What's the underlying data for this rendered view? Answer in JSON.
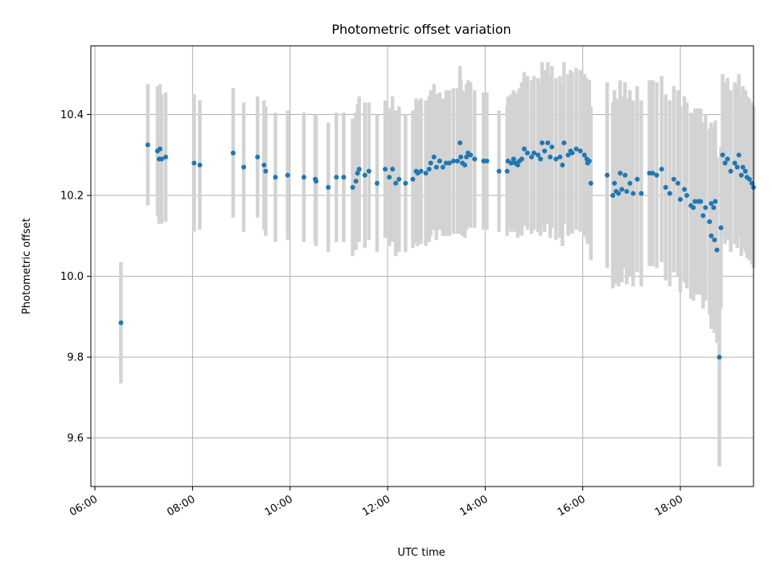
{
  "chart_data": {
    "type": "scatter",
    "title": "Photometric offset variation",
    "xlabel": "UTC time",
    "ylabel": "Photometric offset",
    "x_ticks": [
      "06:00",
      "08:00",
      "10:00",
      "12:00",
      "14:00",
      "16:00",
      "18:00"
    ],
    "y_ticks": [
      "9.6",
      "9.8",
      "10.0",
      "10.2",
      "10.4"
    ],
    "xlim": [
      "05:55",
      "19:30"
    ],
    "ylim": [
      9.48,
      10.57
    ],
    "grid": true,
    "marker_color": "#1f77b4",
    "errorbar_color": "#d3d3d3",
    "series": [
      {
        "x": [
          "06:32",
          "07:05",
          "07:17",
          "07:19",
          "07:20",
          "07:22",
          "07:27",
          "08:02",
          "08:09",
          "08:50",
          "09:03",
          "09:20",
          "09:28",
          "09:30",
          "09:42",
          "09:57",
          "10:17",
          "10:31",
          "10:32",
          "10:47",
          "10:57",
          "11:06",
          "11:17",
          "11:21",
          "11:23",
          "11:25",
          "11:32",
          "11:37",
          "11:47",
          "11:57",
          "12:02",
          "12:06",
          "12:10",
          "12:14",
          "12:22",
          "12:31",
          "12:35",
          "12:37",
          "12:41",
          "12:47",
          "12:51",
          "12:53",
          "12:57",
          "13:00",
          "13:04",
          "13:08",
          "13:12",
          "13:16",
          "13:21",
          "13:26",
          "13:29",
          "13:30",
          "13:32",
          "13:35",
          "13:37",
          "13:39",
          "13:42",
          "13:47",
          "13:58",
          "14:02",
          "14:17",
          "14:27",
          "14:28",
          "14:32",
          "14:35",
          "14:37",
          "14:40",
          "14:42",
          "14:45",
          "14:48",
          "14:52",
          "14:57",
          "15:00",
          "15:05",
          "15:08",
          "15:10",
          "15:13",
          "15:17",
          "15:20",
          "15:22",
          "15:27",
          "15:32",
          "15:35",
          "15:37",
          "15:42",
          "15:45",
          "15:47",
          "15:52",
          "15:57",
          "16:02",
          "16:05",
          "16:06",
          "16:08",
          "16:10",
          "16:30",
          "16:37",
          "16:39",
          "16:41",
          "16:44",
          "16:46",
          "16:48",
          "16:52",
          "16:54",
          "16:58",
          "17:02",
          "17:07",
          "17:12",
          "17:22",
          "17:26",
          "17:31",
          "17:37",
          "17:42",
          "17:47",
          "17:52",
          "17:57",
          "18:00",
          "18:05",
          "18:08",
          "18:13",
          "18:16",
          "18:18",
          "18:22",
          "18:25",
          "18:28",
          "18:31",
          "18:36",
          "18:38",
          "18:42",
          "18:45",
          "18:48",
          "18:52",
          "18:55",
          "18:58",
          "19:02",
          "19:07",
          "19:10",
          "19:12",
          "19:15",
          "19:17",
          "19:20",
          "19:22",
          "19:25",
          "19:28",
          "19:30",
          "18:38",
          "18:41",
          "18:43",
          "18:50"
        ],
        "y": [
          9.885,
          10.325,
          10.31,
          10.29,
          10.315,
          10.29,
          10.295,
          10.28,
          10.275,
          10.305,
          10.27,
          10.295,
          10.275,
          10.26,
          10.245,
          10.25,
          10.245,
          10.24,
          10.235,
          10.22,
          10.245,
          10.245,
          10.22,
          10.235,
          10.255,
          10.265,
          10.25,
          10.26,
          10.23,
          10.265,
          10.245,
          10.265,
          10.23,
          10.24,
          10.23,
          10.24,
          10.26,
          10.255,
          10.26,
          10.255,
          10.265,
          10.28,
          10.295,
          10.27,
          10.285,
          10.27,
          10.28,
          10.28,
          10.285,
          10.285,
          10.33,
          10.295,
          10.28,
          10.275,
          10.295,
          10.305,
          10.3,
          10.29,
          10.285,
          10.285,
          10.26,
          10.26,
          10.285,
          10.28,
          10.29,
          10.28,
          10.275,
          10.285,
          10.29,
          10.315,
          10.305,
          10.295,
          10.305,
          10.3,
          10.29,
          10.33,
          10.31,
          10.33,
          10.295,
          10.32,
          10.29,
          10.295,
          10.275,
          10.33,
          10.3,
          10.31,
          10.305,
          10.315,
          10.31,
          10.3,
          10.29,
          10.28,
          10.285,
          10.23,
          10.25,
          10.2,
          10.23,
          10.21,
          10.205,
          10.255,
          10.215,
          10.25,
          10.21,
          10.23,
          10.205,
          10.24,
          10.205,
          10.255,
          10.255,
          10.25,
          10.265,
          10.22,
          10.205,
          10.24,
          10.23,
          10.19,
          10.215,
          10.2,
          10.175,
          10.17,
          10.185,
          10.185,
          10.185,
          10.15,
          10.17,
          10.135,
          10.1,
          10.09,
          10.065,
          9.8,
          10.3,
          10.28,
          10.29,
          10.26,
          10.28,
          10.27,
          10.3,
          10.25,
          10.27,
          10.26,
          10.245,
          10.24,
          10.23,
          10.22,
          10.18,
          10.17,
          10.185,
          10.12
        ],
        "yerr": [
          0.15,
          0.15,
          0.16,
          0.16,
          0.16,
          0.16,
          0.16,
          0.17,
          0.16,
          0.16,
          0.16,
          0.15,
          0.16,
          0.16,
          0.16,
          0.16,
          0.16,
          0.16,
          0.16,
          0.16,
          0.16,
          0.16,
          0.17,
          0.17,
          0.17,
          0.18,
          0.18,
          0.17,
          0.17,
          0.17,
          0.17,
          0.18,
          0.18,
          0.18,
          0.17,
          0.17,
          0.18,
          0.18,
          0.18,
          0.18,
          0.18,
          0.18,
          0.18,
          0.18,
          0.17,
          0.17,
          0.18,
          0.18,
          0.18,
          0.18,
          0.19,
          0.19,
          0.18,
          0.18,
          0.18,
          0.18,
          0.18,
          0.17,
          0.17,
          0.17,
          0.15,
          0.16,
          0.16,
          0.17,
          0.17,
          0.17,
          0.18,
          0.18,
          0.19,
          0.19,
          0.19,
          0.19,
          0.19,
          0.19,
          0.19,
          0.2,
          0.2,
          0.2,
          0.2,
          0.2,
          0.2,
          0.2,
          0.2,
          0.2,
          0.2,
          0.2,
          0.2,
          0.2,
          0.2,
          0.2,
          0.2,
          0.2,
          0.2,
          0.19,
          0.23,
          0.23,
          0.23,
          0.23,
          0.23,
          0.23,
          0.23,
          0.23,
          0.23,
          0.23,
          0.23,
          0.23,
          0.23,
          0.23,
          0.23,
          0.23,
          0.23,
          0.23,
          0.23,
          0.23,
          0.23,
          0.23,
          0.23,
          0.23,
          0.23,
          0.23,
          0.23,
          0.23,
          0.23,
          0.23,
          0.23,
          0.23,
          0.23,
          0.23,
          0.23,
          0.27,
          0.2,
          0.2,
          0.2,
          0.2,
          0.2,
          0.2,
          0.2,
          0.2,
          0.2,
          0.2,
          0.2,
          0.2,
          0.2,
          0.2,
          0.2,
          0.2,
          0.2,
          0.2
        ]
      }
    ]
  }
}
